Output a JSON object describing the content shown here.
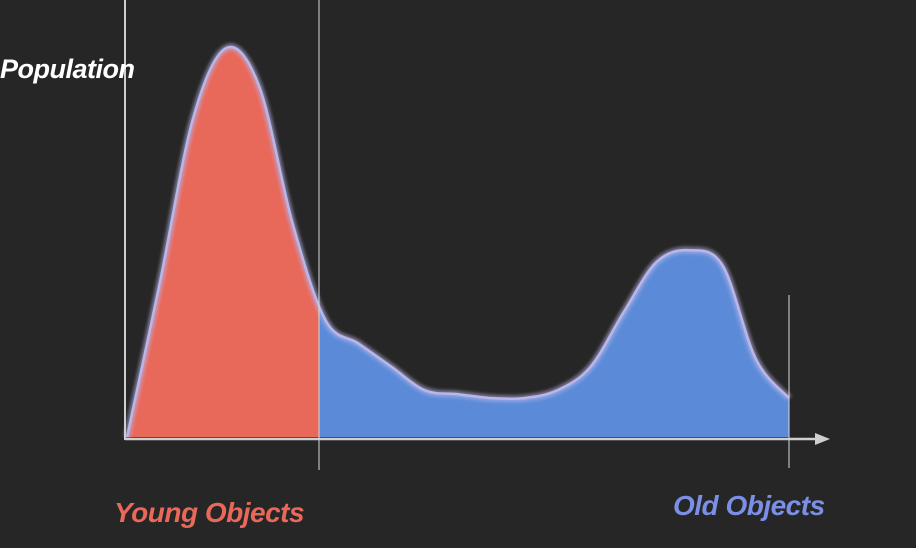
{
  "chart_data": {
    "type": "area",
    "ylabel": "Population",
    "xlabel": "",
    "categories": [
      "Young Objects",
      "Old Objects"
    ],
    "x": [
      0,
      5,
      10,
      15,
      20,
      25,
      30,
      35,
      40,
      45,
      50,
      55,
      60,
      65,
      70,
      75,
      80,
      85,
      90,
      95,
      100
    ],
    "series": [
      {
        "values": [
          0,
          40,
          82,
          100,
          90,
          55,
          30,
          24,
          18,
          12,
          11,
          10,
          10,
          12,
          18,
          32,
          45,
          48,
          44,
          20,
          10
        ]
      }
    ],
    "young_boundary_x": 29,
    "ylim": [
      0,
      100
    ],
    "grid": false,
    "colors": {
      "background": "#262626",
      "young_fill": "#e8685a",
      "old_fill": "#5b8bd8",
      "curve_outline": "#b9b6ea",
      "axis": "#cfcfcf",
      "young_label": "#e8685a",
      "old_label": "#7b8fe6",
      "ylabel": "#ffffff"
    }
  }
}
